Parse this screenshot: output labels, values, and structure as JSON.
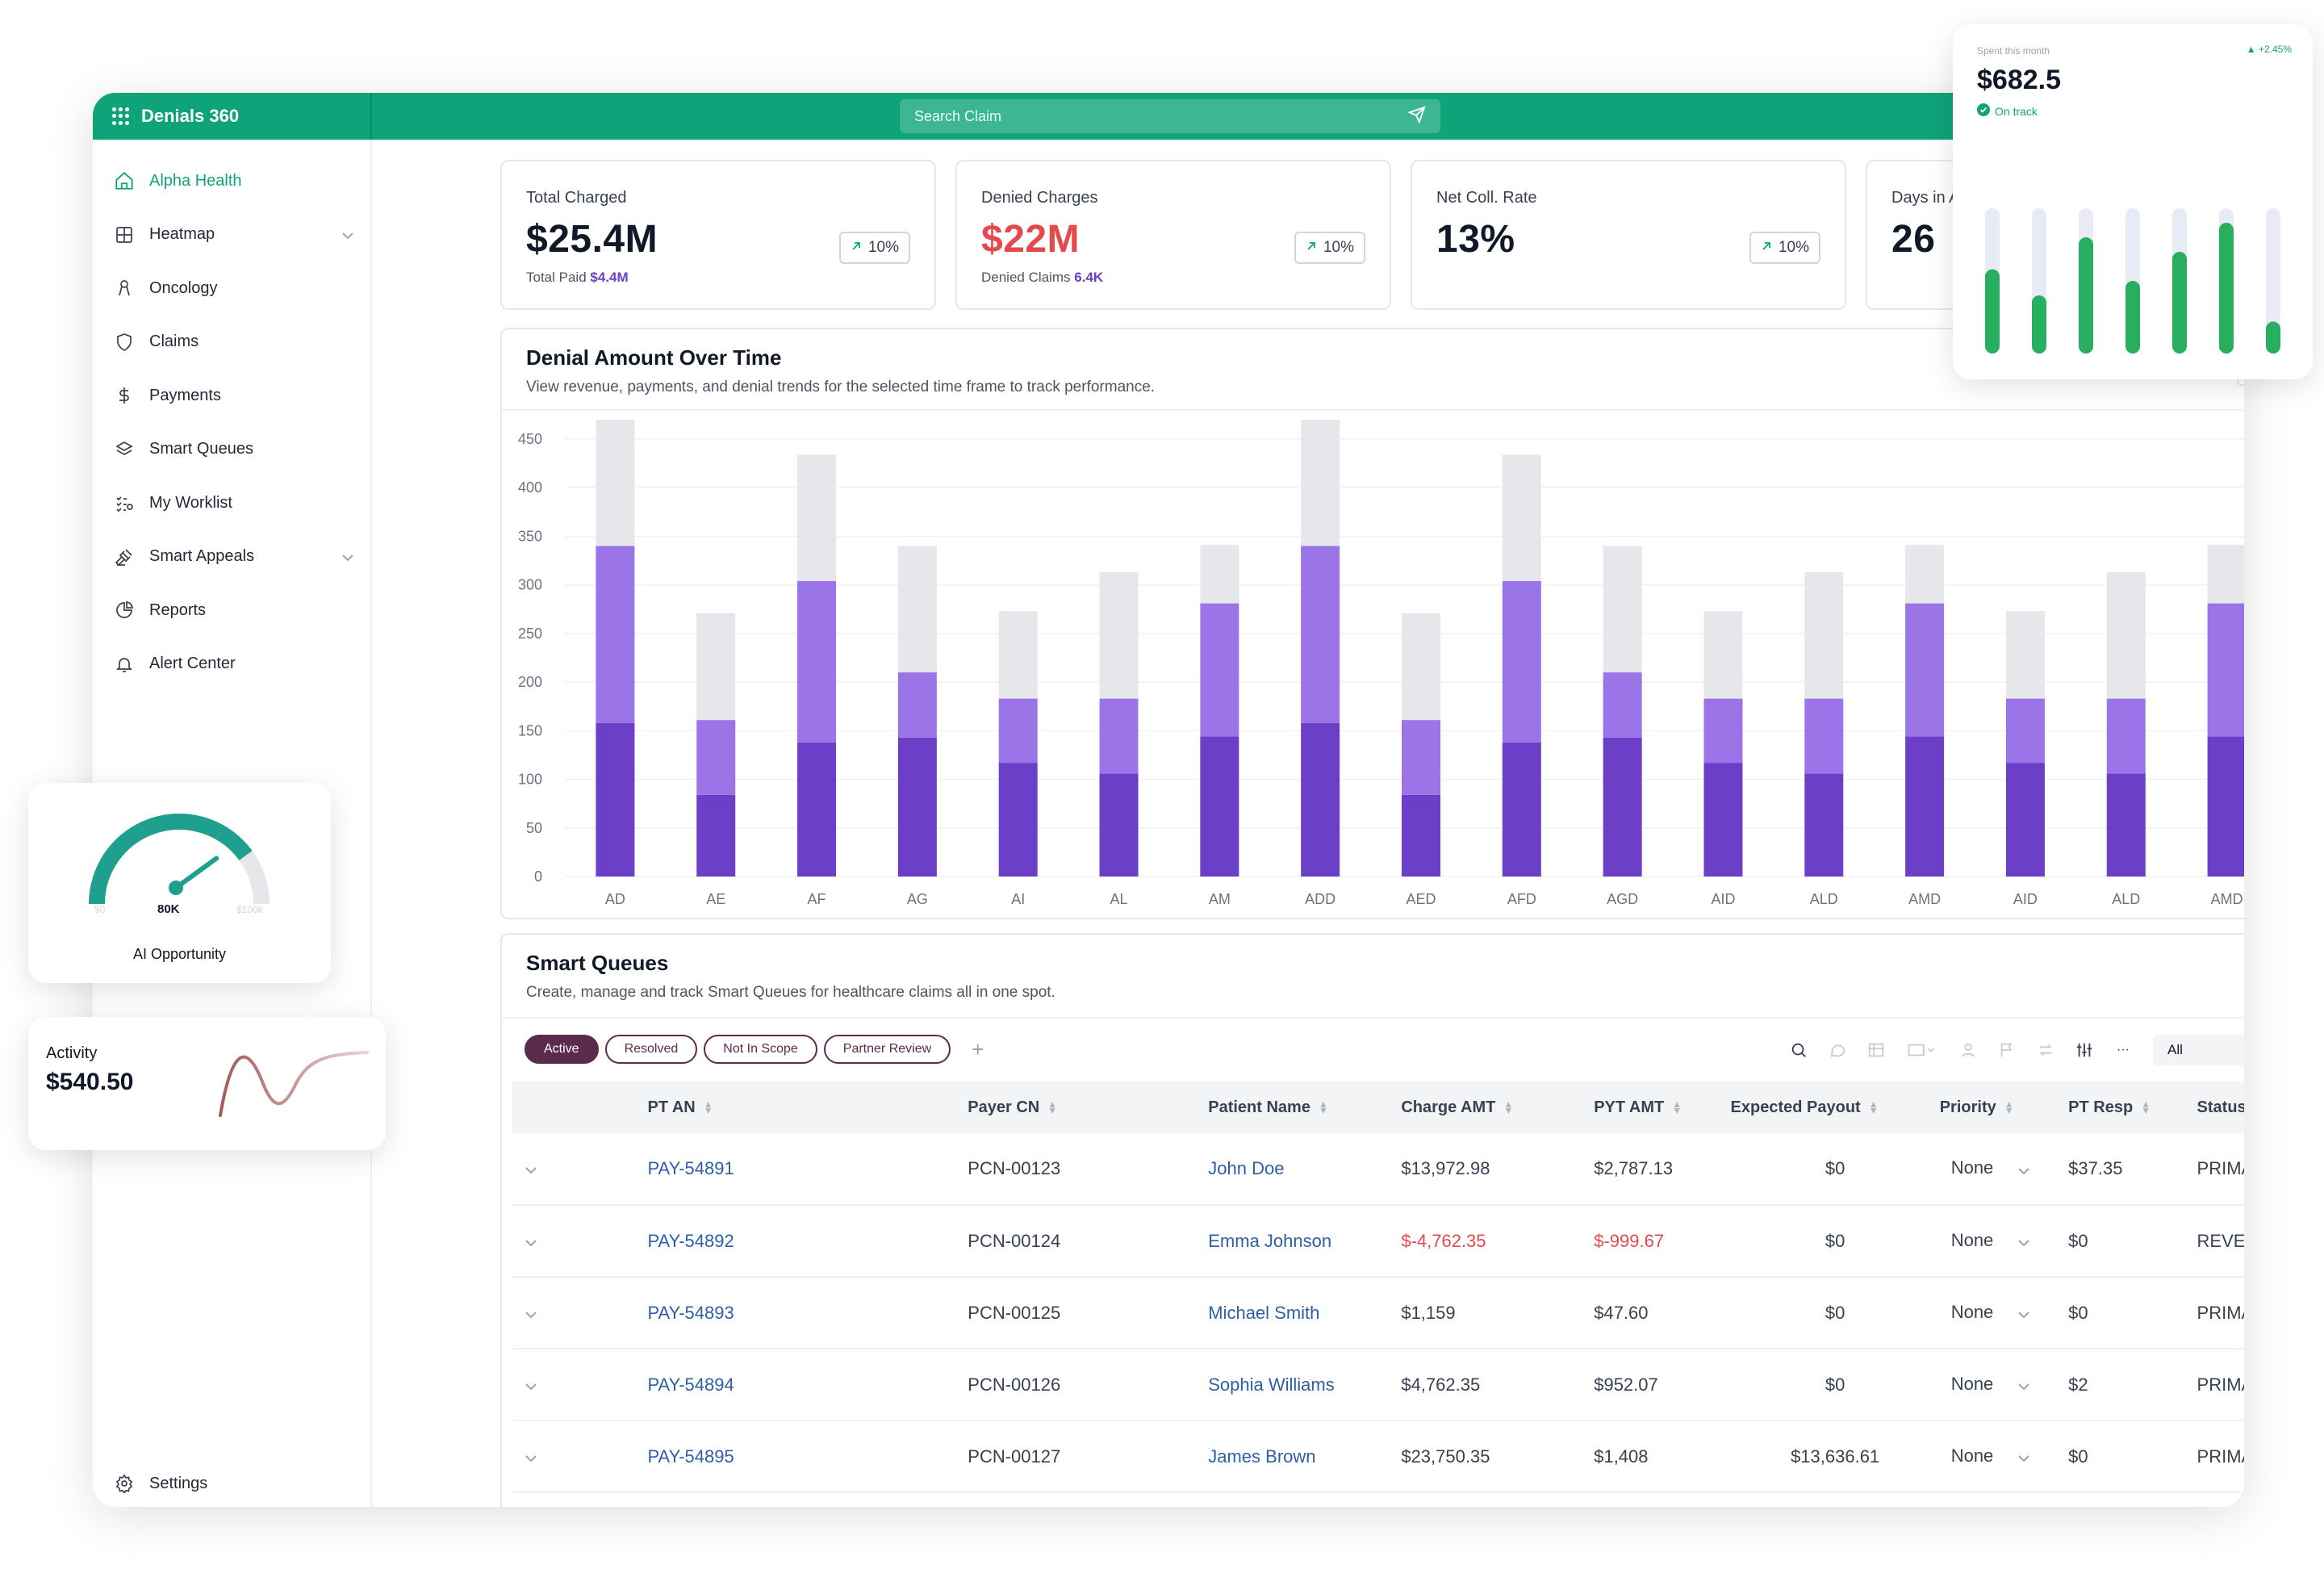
{
  "app": {
    "title": "Denials 360"
  },
  "search": {
    "placeholder": "Search Claim"
  },
  "nav": [
    {
      "label": "Alpha Health",
      "icon": "home-icon",
      "active": true
    },
    {
      "label": "Heatmap",
      "icon": "grid-icon",
      "chevron": true
    },
    {
      "label": "Oncology",
      "icon": "ribbon-icon"
    },
    {
      "label": "Claims",
      "icon": "shield-icon"
    },
    {
      "label": "Payments",
      "icon": "dollar-icon"
    },
    {
      "label": "Smart Queues",
      "icon": "layers-icon"
    },
    {
      "label": "My Worklist",
      "icon": "checklist-icon"
    },
    {
      "label": "Smart Appeals",
      "icon": "gavel-icon",
      "chevron": true
    },
    {
      "label": "Reports",
      "icon": "pie-icon"
    },
    {
      "label": "Alert Center",
      "icon": "bell-icon"
    }
  ],
  "settings": {
    "label": "Settings"
  },
  "kpis": [
    {
      "label": "Total Charged",
      "value": "$25.4M",
      "sub_label": "Total Paid",
      "sub_value": "$4.4M",
      "change": "10%"
    },
    {
      "label": "Denied Charges",
      "value": "$22M",
      "sub_label": "Denied Claims",
      "sub_value": "6.4K",
      "change": "10%",
      "negative": true
    },
    {
      "label": "Net Coll. Rate",
      "value": "13%",
      "sub_label": "",
      "sub_value": "",
      "change": "10%"
    },
    {
      "label": "Days in A/R",
      "value": "26",
      "sub_label": "",
      "sub_value": "",
      "change": ""
    }
  ],
  "denial_chart": {
    "title": "Denial Amount Over Time",
    "description": "View revenue, payments, and denial trends for the selected time frame to track performance."
  },
  "chart_data": {
    "type": "bar",
    "stacked": true,
    "categories": [
      "AD",
      "AE",
      "AF",
      "AG",
      "AI",
      "AL",
      "AM",
      "ADD",
      "AED",
      "AFD",
      "AGD",
      "AID",
      "ALD",
      "AMD",
      "AID",
      "ALD",
      "AMD"
    ],
    "series": [
      {
        "values": [
          158,
          84,
          138,
          143,
          117,
          106,
          144,
          158,
          84,
          138,
          143,
          117,
          106,
          144,
          117,
          106,
          144
        ],
        "color": "#6c3fc8"
      },
      {
        "values": [
          182,
          77,
          166,
          67,
          66,
          77,
          137,
          182,
          77,
          166,
          67,
          66,
          77,
          137,
          66,
          77,
          137
        ],
        "color": "#9b75e8"
      },
      {
        "values": [
          130,
          110,
          130,
          130,
          90,
          130,
          60,
          130,
          110,
          130,
          130,
          90,
          130,
          60,
          90,
          130,
          60
        ],
        "color": "#e6e7ea"
      }
    ],
    "ylim": [
      0,
      450
    ],
    "yticks": [
      0,
      50,
      100,
      150,
      200,
      250,
      300,
      350,
      400,
      450
    ],
    "grid": true
  },
  "smart_queues": {
    "title": "Smart Queues",
    "description": "Create, manage and track Smart Queues for healthcare claims all in one spot.",
    "tabs": [
      {
        "label": "Active",
        "active": true
      },
      {
        "label": "Resolved"
      },
      {
        "label": "Not In Scope"
      },
      {
        "label": "Partner Review"
      }
    ],
    "add_icon": "plus-icon",
    "filter_value": "All",
    "columns": [
      "PT AN",
      "Payer CN",
      "Patient Name",
      "Charge AMT",
      "PYT AMT",
      "Expected Payout",
      "Priority",
      "PT Resp",
      "Status"
    ],
    "rows": [
      {
        "pt_an": "PAY-54891",
        "payer_cn": "PCN-00123",
        "patient": "John Doe",
        "charge": "$13,972.98",
        "pyt": "$2,787.13",
        "payout": "$0",
        "priority": "None",
        "pt_resp": "$37.35",
        "status": "PRIMARY"
      },
      {
        "pt_an": "PAY-54892",
        "payer_cn": "PCN-00124",
        "patient": "Emma Johnson",
        "charge": "$-4,762.35",
        "pyt": "$-999.67",
        "payout": "$0",
        "priority": "None",
        "pt_resp": "$0",
        "status": "REVERSAL",
        "negative": true
      },
      {
        "pt_an": "PAY-54893",
        "payer_cn": "PCN-00125",
        "patient": "Michael Smith",
        "charge": "$1,159",
        "pyt": "$47.60",
        "payout": "$0",
        "priority": "None",
        "pt_resp": "$0",
        "status": "PRIMARY"
      },
      {
        "pt_an": "PAY-54894",
        "payer_cn": "PCN-00126",
        "patient": "Sophia Williams",
        "charge": "$4,762.35",
        "pyt": "$952.07",
        "payout": "$0",
        "priority": "None",
        "pt_resp": "$2",
        "status": "PRIMARY"
      },
      {
        "pt_an": "PAY-54895",
        "payer_cn": "PCN-00127",
        "patient": "James Brown",
        "charge": "$23,750.35",
        "pyt": "$1,408",
        "payout": "$13,636.61",
        "priority": "None",
        "pt_resp": "$0",
        "status": "PRIMARY"
      }
    ]
  },
  "spent_widget": {
    "label": "Spent this month",
    "value": "$682.5",
    "change": "+2.45%",
    "status": "On track",
    "bars": [
      0.58,
      0.4,
      0.8,
      0.5,
      0.7,
      0.9,
      0.22
    ]
  },
  "gauge_widget": {
    "min": "$0",
    "value": "80K",
    "max": "$100k",
    "label": "AI Opportunity",
    "fraction": 0.8
  },
  "activity_widget": {
    "label": "Activity",
    "value": "$540.50"
  }
}
